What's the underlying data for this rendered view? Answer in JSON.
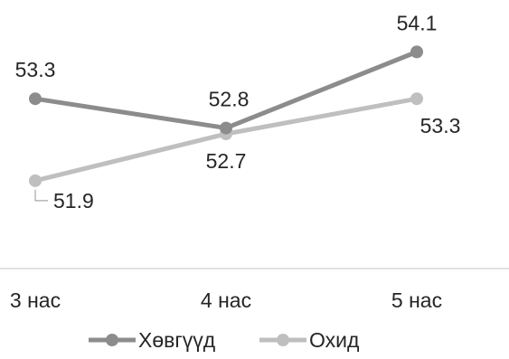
{
  "chart_data": {
    "type": "line",
    "title": "",
    "xlabel": "",
    "ylabel": "",
    "categories": [
      "3 нас",
      "4 нас",
      "5 нас"
    ],
    "ylim": [
      50.4,
      54.6
    ],
    "grid": false,
    "legend_position": "bottom",
    "series": [
      {
        "name": "Хөвгүүд",
        "color": "#8c8c8c",
        "values": [
          53.3,
          52.8,
          54.1
        ],
        "labels": [
          "53.3",
          "52.8",
          "54.1"
        ],
        "label_positions": [
          "above",
          "above",
          "above"
        ]
      },
      {
        "name": "Охид",
        "color": "#bfbfbf",
        "values": [
          51.9,
          52.7,
          53.3
        ],
        "labels": [
          "51.9",
          "52.7",
          "53.3"
        ],
        "label_positions": [
          "below-right-leader",
          "below",
          "below"
        ]
      }
    ]
  }
}
